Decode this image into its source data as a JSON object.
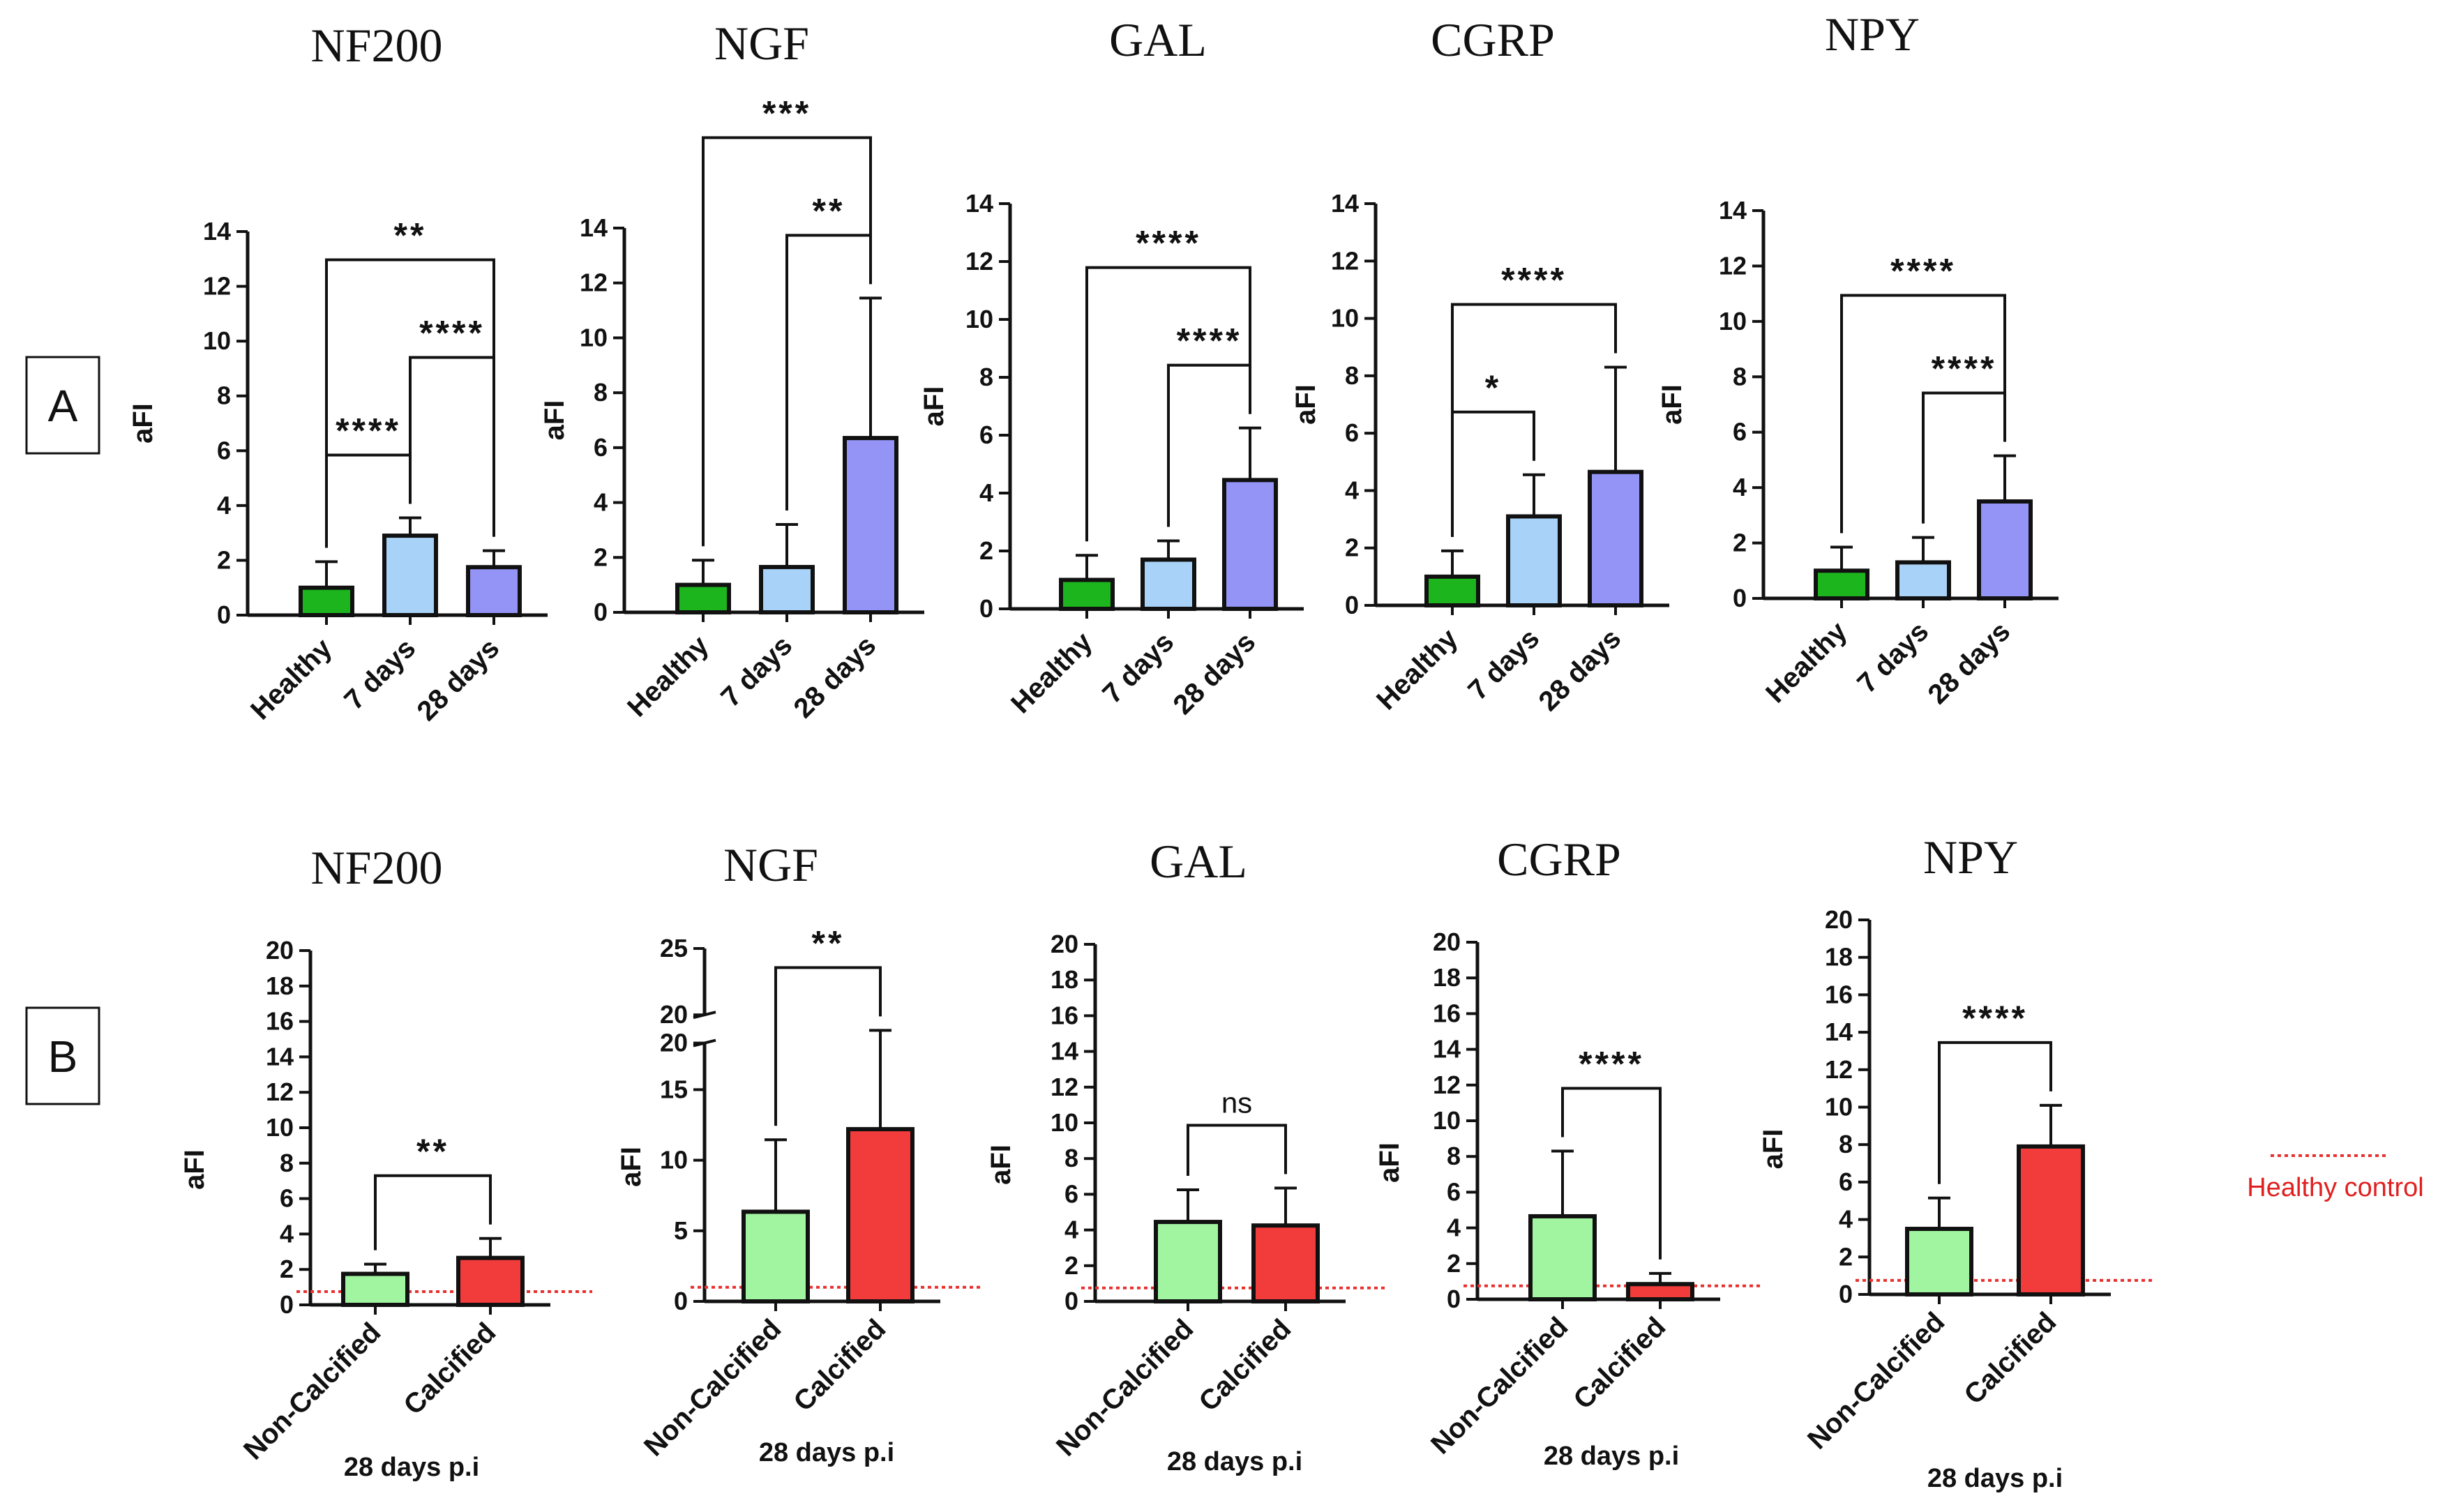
{
  "panels": {
    "A": "A",
    "B": "B"
  },
  "legend": {
    "label": "Healthy control",
    "color": "#e8312f"
  },
  "colors": {
    "healthy": "#1db51d",
    "d7": "#a8d2f7",
    "d28": "#9494f6",
    "noncalc": "#a1f5a1",
    "calc": "#f23c3c",
    "line": "#111111"
  },
  "chart_data": [
    {
      "id": "A1",
      "type": "bar",
      "title": "NF200",
      "ylabel": "aFI",
      "xlabel": "",
      "ylim": [
        0,
        14
      ],
      "yticks": [
        0,
        2,
        4,
        6,
        8,
        10,
        12,
        14
      ],
      "categories": [
        "Healthy",
        "7 days",
        "28 days"
      ],
      "values": [
        1.0,
        2.9,
        1.75
      ],
      "errors": [
        0.95,
        0.65,
        0.6
      ],
      "colors": [
        "healthy",
        "d7",
        "d28"
      ],
      "sig": [
        {
          "a": 0,
          "b": 1,
          "label": "****"
        },
        {
          "a": 1,
          "b": 2,
          "label": "****"
        },
        {
          "a": 0,
          "b": 2,
          "label": "**"
        }
      ]
    },
    {
      "id": "A2",
      "type": "bar",
      "title": "NGF",
      "ylabel": "aFI",
      "xlabel": "",
      "ylim": [
        0,
        14
      ],
      "yticks": [
        0,
        2,
        4,
        6,
        8,
        10,
        12,
        14
      ],
      "categories": [
        "Healthy",
        "7 days",
        "28 days"
      ],
      "values": [
        1.0,
        1.65,
        6.35
      ],
      "errors": [
        0.9,
        1.55,
        5.1
      ],
      "colors": [
        "healthy",
        "d7",
        "d28"
      ],
      "sig": [
        {
          "a": 1,
          "b": 2,
          "label": "**"
        },
        {
          "a": 0,
          "b": 2,
          "label": "***"
        }
      ]
    },
    {
      "id": "A3",
      "type": "bar",
      "title": "GAL",
      "ylabel": "aFI",
      "xlabel": "",
      "ylim": [
        0,
        14
      ],
      "yticks": [
        0,
        2,
        4,
        6,
        8,
        10,
        12,
        14
      ],
      "categories": [
        "Healthy",
        "7 days",
        "28 days"
      ],
      "values": [
        1.0,
        1.7,
        4.45
      ],
      "errors": [
        0.85,
        0.65,
        1.8
      ],
      "colors": [
        "healthy",
        "d7",
        "d28"
      ],
      "sig": [
        {
          "a": 1,
          "b": 2,
          "label": "****"
        },
        {
          "a": 0,
          "b": 2,
          "label": "****"
        }
      ]
    },
    {
      "id": "A4",
      "type": "bar",
      "title": "CGRP",
      "ylabel": "aFI",
      "xlabel": "",
      "ylim": [
        0,
        14
      ],
      "yticks": [
        0,
        2,
        4,
        6,
        8,
        10,
        12,
        14
      ],
      "categories": [
        "Healthy",
        "7 days",
        "28 days"
      ],
      "values": [
        1.0,
        3.1,
        4.65
      ],
      "errors": [
        0.9,
        1.45,
        3.65
      ],
      "colors": [
        "healthy",
        "d7",
        "d28"
      ],
      "sig": [
        {
          "a": 0,
          "b": 1,
          "label": "*"
        },
        {
          "a": 0,
          "b": 2,
          "label": "****"
        }
      ]
    },
    {
      "id": "A5",
      "type": "bar",
      "title": "NPY",
      "ylabel": "aFI",
      "xlabel": "",
      "ylim": [
        0,
        14
      ],
      "yticks": [
        0,
        2,
        4,
        6,
        8,
        10,
        12,
        14
      ],
      "categories": [
        "Healthy",
        "7 days",
        "28 days"
      ],
      "values": [
        1.0,
        1.3,
        3.5
      ],
      "errors": [
        0.85,
        0.9,
        1.65
      ],
      "colors": [
        "healthy",
        "d7",
        "d28"
      ],
      "sig": [
        {
          "a": 1,
          "b": 2,
          "label": "****"
        },
        {
          "a": 0,
          "b": 2,
          "label": "****"
        }
      ]
    },
    {
      "id": "B1",
      "type": "bar",
      "title": "NF200",
      "ylabel": "aFI",
      "xlabel": "28 days p.i",
      "ylim": [
        0,
        20
      ],
      "yticks": [
        0,
        2,
        4,
        6,
        8,
        10,
        12,
        14,
        16,
        18,
        20
      ],
      "categories": [
        "Non-Calcified",
        "Calcified"
      ],
      "values": [
        1.75,
        2.65
      ],
      "errors": [
        0.55,
        1.1
      ],
      "colors": [
        "noncalc",
        "calc"
      ],
      "healthy_line": 0.75,
      "sig": [
        {
          "a": 0,
          "b": 1,
          "label": "**"
        }
      ]
    },
    {
      "id": "B2",
      "type": "bar",
      "title": "NGF",
      "ylabel": "aFI",
      "xlabel": "28 days p.i",
      "ylim": [
        0,
        25
      ],
      "yticks": [
        0,
        5,
        10,
        15,
        20,
        25
      ],
      "axis_break": true,
      "categories": [
        "Non-Calcified",
        "Calcified"
      ],
      "values": [
        6.35,
        12.2
      ],
      "errors": [
        5.1,
        7.0
      ],
      "colors": [
        "noncalc",
        "calc"
      ],
      "healthy_line": 1.0,
      "sig": [
        {
          "a": 0,
          "b": 1,
          "label": "**"
        }
      ]
    },
    {
      "id": "B3",
      "type": "bar",
      "title": "GAL",
      "ylabel": "aFI",
      "xlabel": "28 days p.i",
      "ylim": [
        0,
        20
      ],
      "yticks": [
        0,
        2,
        4,
        6,
        8,
        10,
        12,
        14,
        16,
        18,
        20
      ],
      "categories": [
        "Non-Calcified",
        "Calcified"
      ],
      "values": [
        4.45,
        4.25
      ],
      "errors": [
        1.8,
        2.1
      ],
      "colors": [
        "noncalc",
        "calc"
      ],
      "healthy_line": 0.75,
      "sig": [
        {
          "a": 0,
          "b": 1,
          "label": "ns"
        }
      ]
    },
    {
      "id": "B4",
      "type": "bar",
      "title": "CGRP",
      "ylabel": "aFI",
      "xlabel": "28 days p.i",
      "ylim": [
        0,
        20
      ],
      "yticks": [
        0,
        2,
        4,
        6,
        8,
        10,
        12,
        14,
        16,
        18,
        20
      ],
      "categories": [
        "Non-Calcified",
        "Calcified"
      ],
      "values": [
        4.65,
        0.85
      ],
      "errors": [
        3.65,
        0.6
      ],
      "colors": [
        "noncalc",
        "calc"
      ],
      "healthy_line": 0.75,
      "sig": [
        {
          "a": 0,
          "b": 1,
          "label": "****"
        }
      ]
    },
    {
      "id": "B5",
      "type": "bar",
      "title": "NPY",
      "ylabel": "aFI",
      "xlabel": "28 days p.i",
      "ylim": [
        0,
        20
      ],
      "yticks": [
        0,
        2,
        4,
        6,
        8,
        10,
        12,
        14,
        16,
        18,
        20
      ],
      "categories": [
        "Non-Calcified",
        "Calcified"
      ],
      "values": [
        3.5,
        7.9
      ],
      "errors": [
        1.65,
        2.2
      ],
      "colors": [
        "noncalc",
        "calc"
      ],
      "healthy_line": 0.75,
      "sig": [
        {
          "a": 0,
          "b": 1,
          "label": "****"
        }
      ]
    }
  ]
}
